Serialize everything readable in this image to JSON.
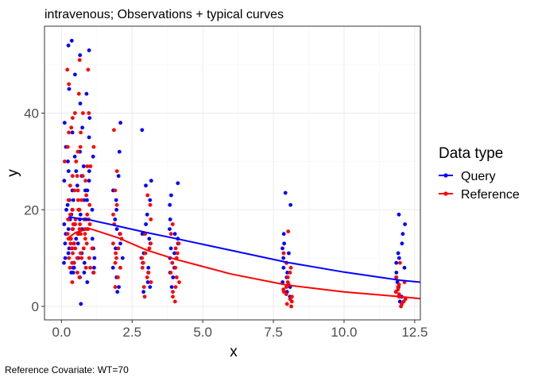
{
  "title": "intravenous; Observations + typical curves",
  "caption": "Reference Covariate: WT=70",
  "legend": {
    "title": "Data type",
    "items": [
      {
        "label": "Query",
        "color": "#0000ff"
      },
      {
        "label": "Reference",
        "color": "#ff0000"
      }
    ]
  },
  "chart_data": {
    "type": "scatter",
    "title": "intravenous; Observations + typical curves",
    "xlabel": "x",
    "ylabel": "y",
    "xlim": [
      -0.6,
      12.7
    ],
    "ylim": [
      -2.8,
      58
    ],
    "x_ticks": [
      0,
      2.5,
      5,
      7.5,
      10,
      12.5
    ],
    "x_tick_labels": [
      "0.0",
      "2.5",
      "5.0",
      "7.5",
      "10.0",
      "12.5"
    ],
    "y_ticks": [
      0,
      20,
      40
    ],
    "y_tick_labels": [
      "0",
      "20",
      "40"
    ],
    "grid": true,
    "legend_position": "right",
    "sampling_times": [
      0.25,
      0.5,
      0.75,
      1,
      2,
      3,
      4,
      8,
      12
    ],
    "series": [
      {
        "name": "Query",
        "color": "#0000ff",
        "typical_curve": {
          "x": [
            0.25,
            0.5,
            1,
            2,
            3,
            4,
            6,
            8,
            10,
            12,
            12.7
          ],
          "y": [
            18.5,
            18.3,
            17.9,
            16.6,
            15.3,
            14.1,
            11.6,
            9.1,
            7.1,
            5.4,
            5.0
          ]
        },
        "observations": [
          {
            "x": 0.25,
            "y": [
              54,
              45,
              38,
              33,
              30,
              28,
              26,
              24,
              22,
              21,
              20,
              19,
              18,
              17,
              16,
              15,
              14,
              13,
              12,
              11,
              10,
              9,
              8,
              7
            ]
          },
          {
            "x": 0.5,
            "y": [
              55,
              48,
              42,
              36,
              31,
              28,
              25,
              22,
              20,
              19,
              17,
              16,
              14,
              13,
              12,
              10,
              9,
              8,
              7,
              6
            ]
          },
          {
            "x": 0.75,
            "y": [
              52,
              44,
              37,
              32,
              29,
              27,
              24,
              22,
              20,
              18,
              16,
              15,
              13,
              11,
              9,
              7,
              5,
              0.5
            ]
          },
          {
            "x": 1,
            "y": [
              53,
              39,
              35,
              31,
              28,
              26,
              24,
              22,
              20,
              18,
              16,
              14,
              12,
              10,
              8,
              7
            ]
          },
          {
            "x": 2,
            "y": [
              38,
              32,
              27,
              24,
              22,
              20,
              18,
              16,
              15,
              13,
              12,
              10,
              8,
              6,
              4,
              3
            ]
          },
          {
            "x": 3,
            "y": [
              36.5,
              26,
              25,
              22,
              19,
              17,
              15,
              14,
              13,
              11,
              10,
              9,
              8,
              7,
              5,
              4,
              3
            ]
          },
          {
            "x": 4,
            "y": [
              25.5,
              23,
              21,
              18,
              16,
              15,
              14,
              13,
              12,
              11,
              10,
              9,
              8,
              7,
              6,
              4
            ]
          },
          {
            "x": 8,
            "y": [
              23.5,
              21,
              15,
              13,
              12,
              11,
              10,
              9,
              8,
              7,
              6,
              5,
              4,
              3,
              2
            ]
          },
          {
            "x": 12,
            "y": [
              19,
              17,
              15,
              13,
              11,
              10,
              9,
              8,
              7,
              6,
              5,
              4,
              3,
              2,
              1
            ]
          }
        ]
      },
      {
        "name": "Reference",
        "color": "#ff0000",
        "typical_curve": {
          "x": [
            0.25,
            0.5,
            1,
            2,
            3,
            4,
            6,
            8,
            10,
            12,
            12.7
          ],
          "y": [
            14.2,
            15.3,
            16.1,
            14.2,
            11.7,
            9.8,
            6.7,
            4.4,
            3.0,
            2.0,
            1.6
          ]
        },
        "observations": [
          {
            "x": 0.25,
            "y": [
              49,
              46,
              39,
              36,
              33,
              30,
              27,
              25,
              22,
              20,
              19,
              18,
              17,
              16,
              15,
              14,
              13,
              12,
              11,
              10,
              9,
              8
            ]
          },
          {
            "x": 0.5,
            "y": [
              44,
              40,
              37,
              33,
              30,
              27,
              24,
              22,
              20,
              18,
              17,
              16,
              15,
              14,
              13,
              12,
              11,
              10,
              9,
              7,
              5
            ]
          },
          {
            "x": 0.75,
            "y": [
              51,
              40,
              36,
              32,
              29,
              27,
              24,
              22,
              20,
              18,
              17,
              16,
              15,
              13,
              12,
              10,
              8,
              6
            ]
          },
          {
            "x": 1,
            "y": [
              49,
              40,
              33,
              29,
              26,
              23,
              21,
              19,
              18,
              17,
              16,
              15,
              14,
              12,
              10,
              8,
              7
            ]
          },
          {
            "x": 2,
            "y": [
              36.5,
              28,
              24,
              21,
              19,
              17,
              15,
              14,
              13,
              12,
              11,
              10,
              9,
              8,
              6,
              4
            ]
          },
          {
            "x": 3,
            "y": [
              23,
              21,
              18,
              15,
              13,
              12,
              11,
              10,
              9,
              8,
              7,
              6,
              5,
              4,
              2
            ]
          },
          {
            "x": 4,
            "y": [
              17,
              15,
              13,
              12,
              11,
              10,
              9,
              8,
              7,
              6,
              5,
              4,
              3,
              2,
              1
            ]
          },
          {
            "x": 8,
            "y": [
              15.5,
              11,
              9,
              8,
              7,
              6,
              5,
              4.5,
              4,
              3.5,
              3,
              2.5,
              2,
              1.5,
              1,
              0.5,
              0
            ]
          },
          {
            "x": 12,
            "y": [
              9,
              6,
              5,
              4.5,
              4,
              3.5,
              3,
              2.5,
              2,
              1.5,
              1,
              0.5,
              0
            ]
          }
        ]
      }
    ]
  }
}
